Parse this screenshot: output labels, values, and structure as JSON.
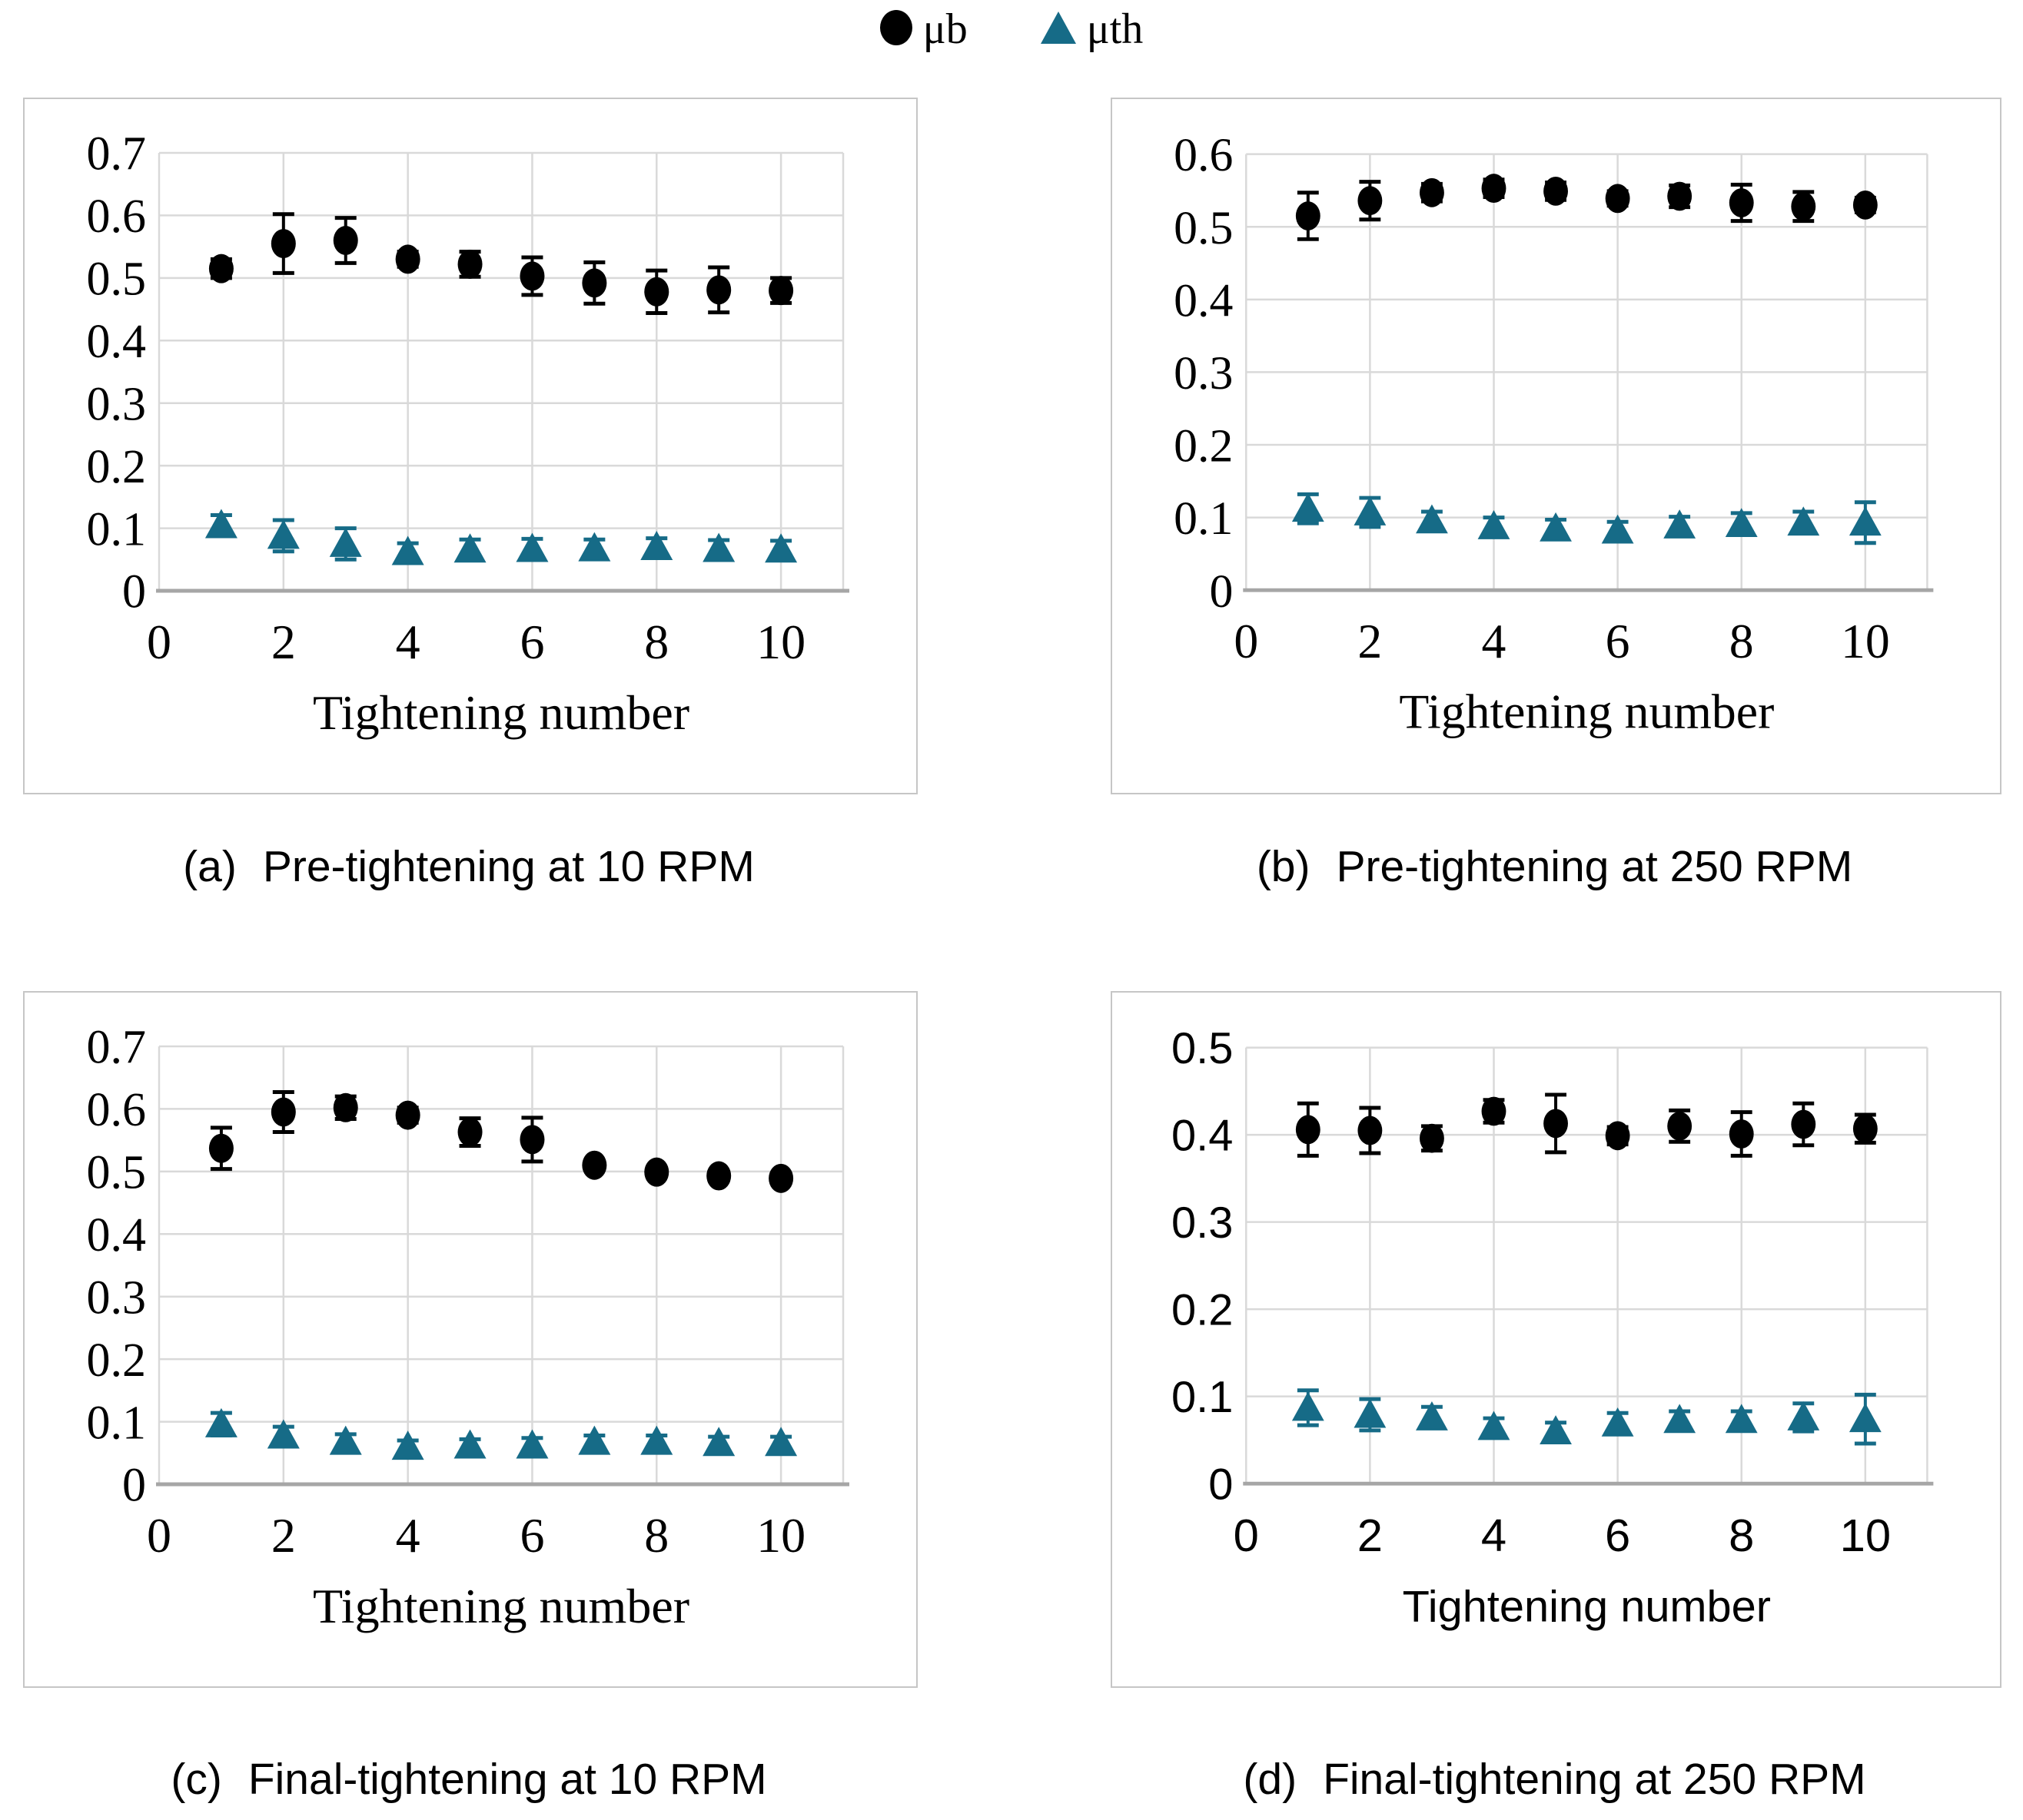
{
  "legend": {
    "items": [
      {
        "label": "μb",
        "marker": "circle",
        "color": "#000000"
      },
      {
        "label": "μth",
        "marker": "triangle",
        "color": "#166b87"
      }
    ]
  },
  "colors": {
    "mu_b": "#000000",
    "mu_th": "#166b87",
    "grid": "#d9d9d9",
    "axis": "#a6a6a6",
    "panel_border": "#c6c6c6",
    "text": "#000000"
  },
  "chart_data": [
    {
      "id": "a",
      "type": "scatter",
      "panel_label": "(a)",
      "caption": "Pre-tightening at 10 RPM",
      "xlabel": "Tightening number",
      "tick_font": "serif",
      "xlim": [
        0,
        11
      ],
      "xticks": [
        0,
        2,
        4,
        6,
        8,
        10
      ],
      "ylim": [
        0,
        0.7
      ],
      "ytick_step": 0.1,
      "x": [
        1,
        2,
        3,
        4,
        5,
        6,
        7,
        8,
        9,
        10
      ],
      "series": [
        {
          "name": "μb",
          "marker": "circle",
          "values": [
            0.515,
            0.555,
            0.56,
            0.53,
            0.522,
            0.503,
            0.492,
            0.478,
            0.481,
            0.48
          ],
          "errors": [
            0.015,
            0.047,
            0.036,
            0.012,
            0.02,
            0.03,
            0.033,
            0.034,
            0.036,
            0.02
          ]
        },
        {
          "name": "μth",
          "marker": "triangle",
          "values": [
            0.105,
            0.088,
            0.075,
            0.062,
            0.066,
            0.067,
            0.068,
            0.07,
            0.067,
            0.066
          ],
          "errors": [
            0.016,
            0.025,
            0.025,
            0.014,
            0.016,
            0.016,
            0.014,
            0.014,
            0.014,
            0.014
          ]
        }
      ]
    },
    {
      "id": "b",
      "type": "scatter",
      "panel_label": "(b)",
      "caption": "Pre-tightening at 250 RPM",
      "xlabel": "Tightening number",
      "tick_font": "serif",
      "xlim": [
        0,
        11
      ],
      "xticks": [
        0,
        2,
        4,
        6,
        8,
        10
      ],
      "ylim": [
        0,
        0.6
      ],
      "ytick_step": 0.1,
      "x": [
        1,
        2,
        3,
        4,
        5,
        6,
        7,
        8,
        9,
        10
      ],
      "series": [
        {
          "name": "μb",
          "marker": "circle",
          "values": [
            0.515,
            0.536,
            0.547,
            0.553,
            0.549,
            0.539,
            0.542,
            0.533,
            0.528,
            0.53
          ],
          "errors": [
            0.032,
            0.026,
            0.012,
            0.012,
            0.012,
            0.01,
            0.015,
            0.025,
            0.02,
            0.01
          ]
        },
        {
          "name": "μth",
          "marker": "triangle",
          "values": [
            0.112,
            0.107,
            0.096,
            0.088,
            0.085,
            0.082,
            0.089,
            0.091,
            0.093,
            0.093
          ],
          "errors": [
            0.02,
            0.02,
            0.012,
            0.012,
            0.012,
            0.012,
            0.012,
            0.015,
            0.015,
            0.028
          ]
        }
      ]
    },
    {
      "id": "c",
      "type": "scatter",
      "panel_label": "(c)",
      "caption": "Final-tightening at 10 RPM",
      "xlabel": "Tightening number",
      "tick_font": "serif",
      "xlim": [
        0,
        11
      ],
      "xticks": [
        0,
        2,
        4,
        6,
        8,
        10
      ],
      "ylim": [
        0,
        0.7
      ],
      "ytick_step": 0.1,
      "x": [
        1,
        2,
        3,
        4,
        5,
        6,
        7,
        8,
        9,
        10
      ],
      "series": [
        {
          "name": "μb",
          "marker": "circle",
          "values": [
            0.537,
            0.595,
            0.602,
            0.59,
            0.563,
            0.551,
            0.51,
            0.499,
            0.493,
            0.489
          ],
          "errors": [
            0.033,
            0.032,
            0.018,
            0.012,
            0.022,
            0.035,
            0.008,
            0.008,
            0.008,
            0.008
          ]
        },
        {
          "name": "μth",
          "marker": "triangle",
          "values": [
            0.096,
            0.078,
            0.068,
            0.06,
            0.062,
            0.062,
            0.068,
            0.068,
            0.066,
            0.066
          ],
          "errors": [
            0.018,
            0.014,
            0.012,
            0.01,
            0.01,
            0.012,
            0.01,
            0.01,
            0.01,
            0.01
          ]
        }
      ]
    },
    {
      "id": "d",
      "type": "scatter",
      "panel_label": "(d)",
      "caption": "Final-tightening at 250 RPM",
      "xlabel": "Tightening number",
      "tick_font": "sans",
      "xlim": [
        0,
        11
      ],
      "xticks": [
        0,
        2,
        4,
        6,
        8,
        10
      ],
      "ylim": [
        0,
        0.5
      ],
      "ytick_step": 0.1,
      "x": [
        1,
        2,
        3,
        4,
        5,
        6,
        7,
        8,
        9,
        10
      ],
      "series": [
        {
          "name": "μb",
          "marker": "circle",
          "values": [
            0.406,
            0.405,
            0.396,
            0.427,
            0.413,
            0.399,
            0.41,
            0.401,
            0.412,
            0.407
          ],
          "errors": [
            0.03,
            0.026,
            0.014,
            0.013,
            0.033,
            0.01,
            0.018,
            0.025,
            0.024,
            0.016
          ]
        },
        {
          "name": "μth",
          "marker": "triangle",
          "values": [
            0.087,
            0.079,
            0.076,
            0.065,
            0.06,
            0.069,
            0.073,
            0.073,
            0.076,
            0.074
          ],
          "errors": [
            0.02,
            0.018,
            0.012,
            0.01,
            0.01,
            0.012,
            0.01,
            0.01,
            0.016,
            0.028
          ]
        }
      ]
    }
  ]
}
